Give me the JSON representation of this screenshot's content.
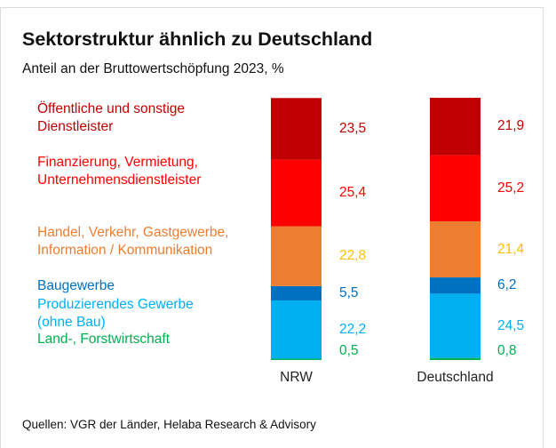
{
  "chart_data": {
    "type": "stacked_bar",
    "title": "Sektorstruktur ähnlich zu Deutschland",
    "subtitle": "Anteil an der Bruttowertschöpfung 2023, %",
    "source": "Quellen: VGR der Länder, Helaba Research & Advisory",
    "categories": [
      "NRW",
      "Deutschland"
    ],
    "ylim": [
      0,
      100
    ],
    "series": [
      {
        "name": "Land-, Forstwirtschaft",
        "color": "#00b050",
        "label_color": "#00b050",
        "values": [
          0.5,
          0.8
        ],
        "value_labels": [
          "0,5",
          "0,8"
        ]
      },
      {
        "name": "Produzierendes Gewerbe\n(ohne Bau)",
        "color": "#00b0f0",
        "label_color": "#00b0f0",
        "values": [
          22.2,
          24.5
        ],
        "value_labels": [
          "22,2",
          "24,5"
        ]
      },
      {
        "name": "Baugewerbe",
        "color": "#0070c0",
        "label_color": "#0070c0",
        "values": [
          5.5,
          6.2
        ],
        "value_labels": [
          "5,5",
          "6,2"
        ]
      },
      {
        "name": "Handel, Verkehr, Gastgewerbe,\nInformation / Kommunikation",
        "color": "#ed7d31",
        "label_color": "#ffc000",
        "values": [
          22.8,
          21.4
        ],
        "value_labels": [
          "22,8",
          "21,4"
        ]
      },
      {
        "name": "Finanzierung, Vermietung,\nUnternehmensdienstleister",
        "color": "#ff0000",
        "label_color": "#ff0000",
        "values": [
          25.4,
          25.2
        ],
        "value_labels": [
          "25,4",
          "25,2"
        ]
      },
      {
        "name": "Öffentliche und sonstige\nDienstleister",
        "color": "#c00000",
        "label_color": "#c00000",
        "values": [
          23.5,
          21.9
        ],
        "value_labels": [
          "23,5",
          "21,9"
        ]
      }
    ]
  }
}
